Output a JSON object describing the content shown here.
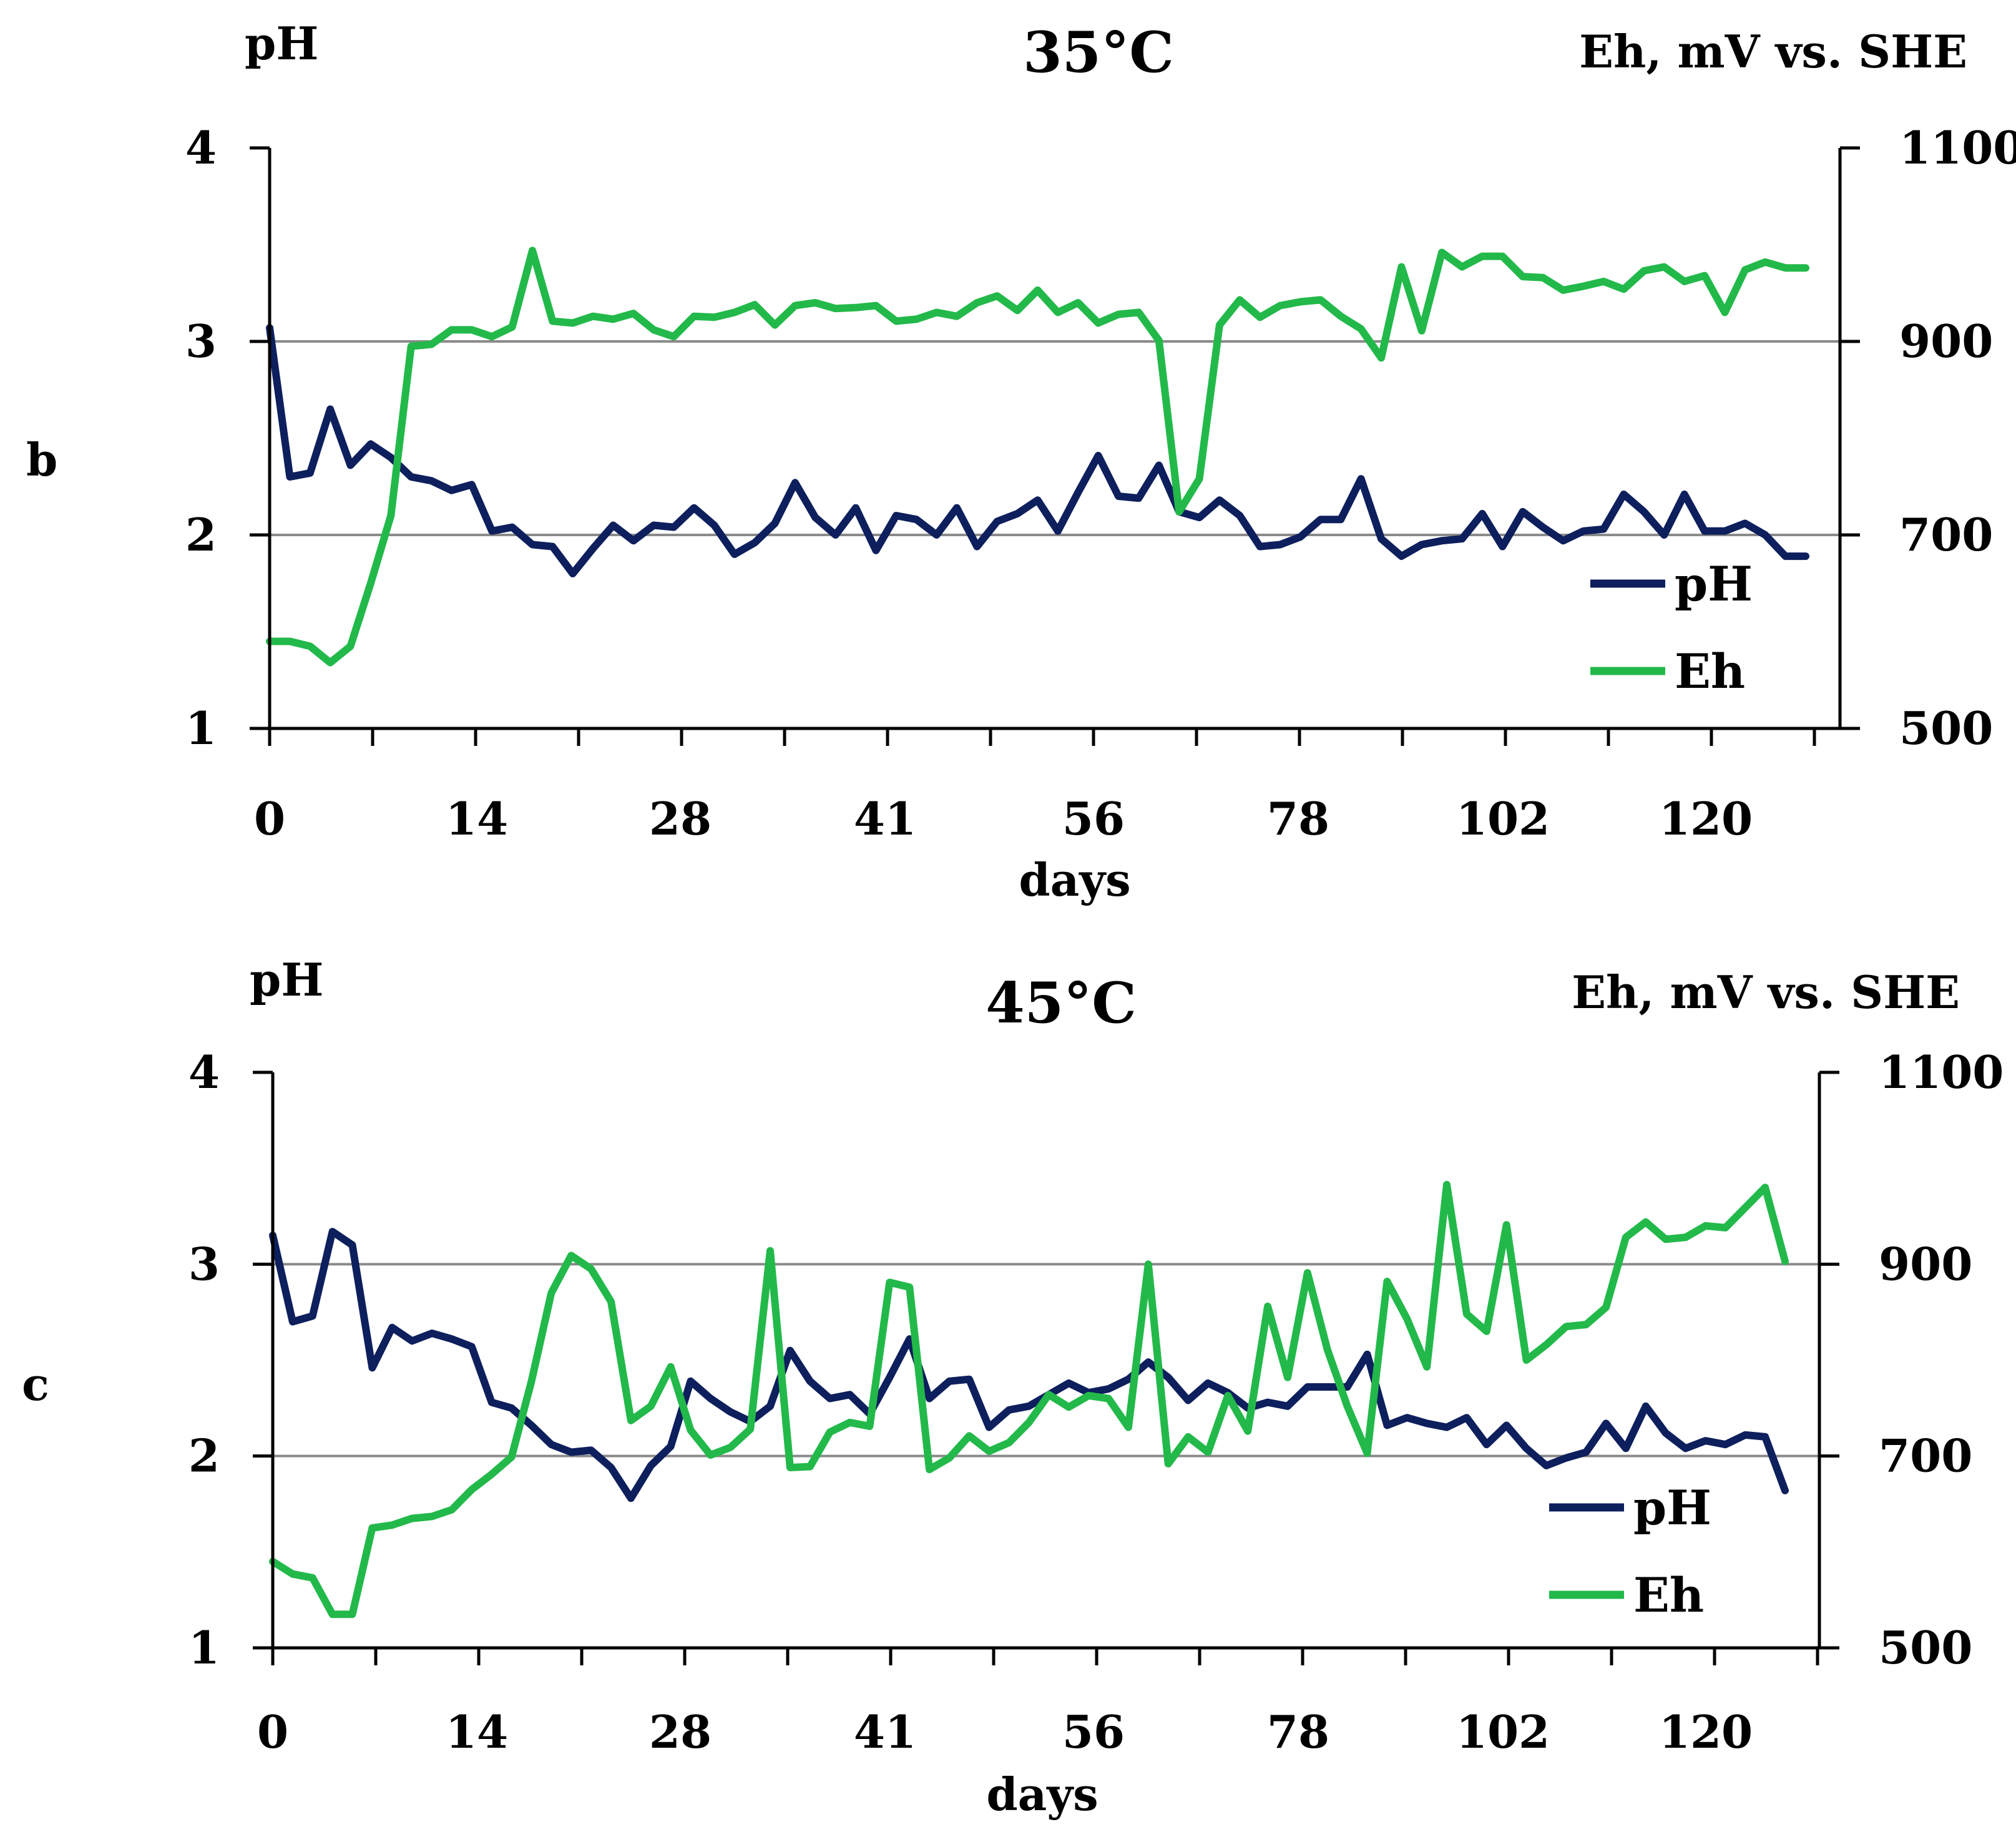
{
  "colors": {
    "ph": "#0d1f5c",
    "eh": "#22b94a",
    "grid": "#8a8a8a",
    "axis": "#000000"
  },
  "chart_data": [
    {
      "type": "line",
      "panel_label": "b",
      "title": "35°C",
      "xlabel": "days",
      "ylabel_left": "pH",
      "ylabel_right": "Eh, mV vs. SHE",
      "ylim_left": [
        1,
        4
      ],
      "ylim_right": [
        500,
        1100
      ],
      "left_ticks": [
        "1",
        "2",
        "3",
        "4"
      ],
      "right_ticks": [
        "500",
        "700",
        "900",
        "1100"
      ],
      "x_tick_labels": [
        "0",
        "14",
        "28",
        "41",
        "56",
        "78",
        "102",
        "120"
      ],
      "grid": true,
      "legend_position": "lower-right",
      "series": [
        {
          "name": "pH",
          "axis": "left",
          "values": [
            3.07,
            2.3,
            2.32,
            2.65,
            2.36,
            2.47,
            2.4,
            2.3,
            2.28,
            2.23,
            2.26,
            2.02,
            2.04,
            1.95,
            1.94,
            1.8,
            1.93,
            2.05,
            1.97,
            2.05,
            2.04,
            2.14,
            2.05,
            1.9,
            1.96,
            2.06,
            2.27,
            2.09,
            2.0,
            2.14,
            1.92,
            2.1,
            2.08,
            2.0,
            2.14,
            1.94,
            2.07,
            2.11,
            2.18,
            2.02,
            2.22,
            2.41,
            2.2,
            2.19,
            2.36,
            2.12,
            2.09,
            2.18,
            2.1,
            1.94,
            1.95,
            1.99,
            2.08,
            2.08,
            2.29,
            1.98,
            1.89,
            1.95,
            1.97,
            1.98,
            2.11,
            1.94,
            2.12,
            2.04,
            1.97,
            2.02,
            2.03,
            2.21,
            2.12,
            2.0,
            2.21,
            2.02,
            2.02,
            2.06,
            2.0,
            1.89,
            1.89
          ]
        },
        {
          "name": "Eh",
          "axis": "right",
          "values": [
            590,
            590,
            585,
            568,
            585,
            650,
            720,
            895,
            897,
            912,
            912,
            905,
            915,
            994,
            921,
            919,
            926,
            923,
            929,
            912,
            905,
            926,
            925,
            930,
            938,
            917,
            937,
            940,
            934,
            935,
            937,
            921,
            923,
            930,
            926,
            940,
            947,
            932,
            953,
            930,
            940,
            919,
            928,
            930,
            901,
            724,
            758,
            917,
            943,
            925,
            937,
            941,
            943,
            926,
            913,
            883,
            977,
            911,
            992,
            977,
            988,
            988,
            967,
            966,
            953,
            957,
            962,
            954,
            973,
            977,
            962,
            968,
            930,
            974,
            982,
            976,
            976
          ]
        }
      ]
    },
    {
      "type": "line",
      "panel_label": "c",
      "title": "45°C",
      "xlabel": "days",
      "ylabel_left": "pH",
      "ylabel_right": "Eh, mV vs. SHE",
      "ylim_left": [
        1,
        4
      ],
      "ylim_right": [
        500,
        1100
      ],
      "left_ticks": [
        "1",
        "2",
        "3",
        "4"
      ],
      "right_ticks": [
        "500",
        "700",
        "900",
        "1100"
      ],
      "x_tick_labels": [
        "0",
        "14",
        "28",
        "41",
        "56",
        "78",
        "102",
        "120"
      ],
      "grid": true,
      "legend_position": "lower-right",
      "series": [
        {
          "name": "pH",
          "axis": "left",
          "values": [
            3.15,
            2.7,
            2.73,
            3.17,
            3.1,
            2.46,
            2.67,
            2.6,
            2.64,
            2.61,
            2.57,
            2.28,
            2.25,
            2.16,
            2.06,
            2.02,
            2.03,
            1.94,
            1.78,
            1.95,
            2.05,
            2.39,
            2.3,
            2.23,
            2.18,
            2.26,
            2.55,
            2.39,
            2.3,
            2.32,
            2.22,
            2.41,
            2.61,
            2.3,
            2.39,
            2.4,
            2.15,
            2.24,
            2.26,
            2.32,
            2.38,
            2.33,
            2.35,
            2.4,
            2.49,
            2.41,
            2.29,
            2.38,
            2.33,
            2.25,
            2.28,
            2.26,
            2.36,
            2.36,
            2.36,
            2.53,
            2.16,
            2.2,
            2.17,
            2.15,
            2.2,
            2.06,
            2.16,
            2.04,
            1.95,
            1.99,
            2.02,
            2.17,
            2.04,
            2.26,
            2.12,
            2.04,
            2.08,
            2.06,
            2.11,
            2.1,
            1.82
          ]
        },
        {
          "name": "Eh",
          "axis": "right",
          "values": [
            590,
            577,
            573,
            535,
            535,
            625,
            628,
            635,
            637,
            644,
            665,
            681,
            699,
            778,
            870,
            909,
            895,
            861,
            737,
            752,
            793,
            727,
            701,
            709,
            728,
            914,
            688,
            689,
            725,
            735,
            731,
            881,
            876,
            686,
            698,
            721,
            705,
            714,
            735,
            764,
            751,
            763,
            760,
            730,
            900,
            692,
            720,
            704,
            763,
            726,
            856,
            782,
            891,
            811,
            752,
            703,
            882,
            843,
            793,
            983,
            848,
            830,
            941,
            800,
            816,
            835,
            837,
            855,
            928,
            944,
            926,
            928,
            940,
            938,
            959,
            980,
            903
          ]
        }
      ]
    }
  ]
}
